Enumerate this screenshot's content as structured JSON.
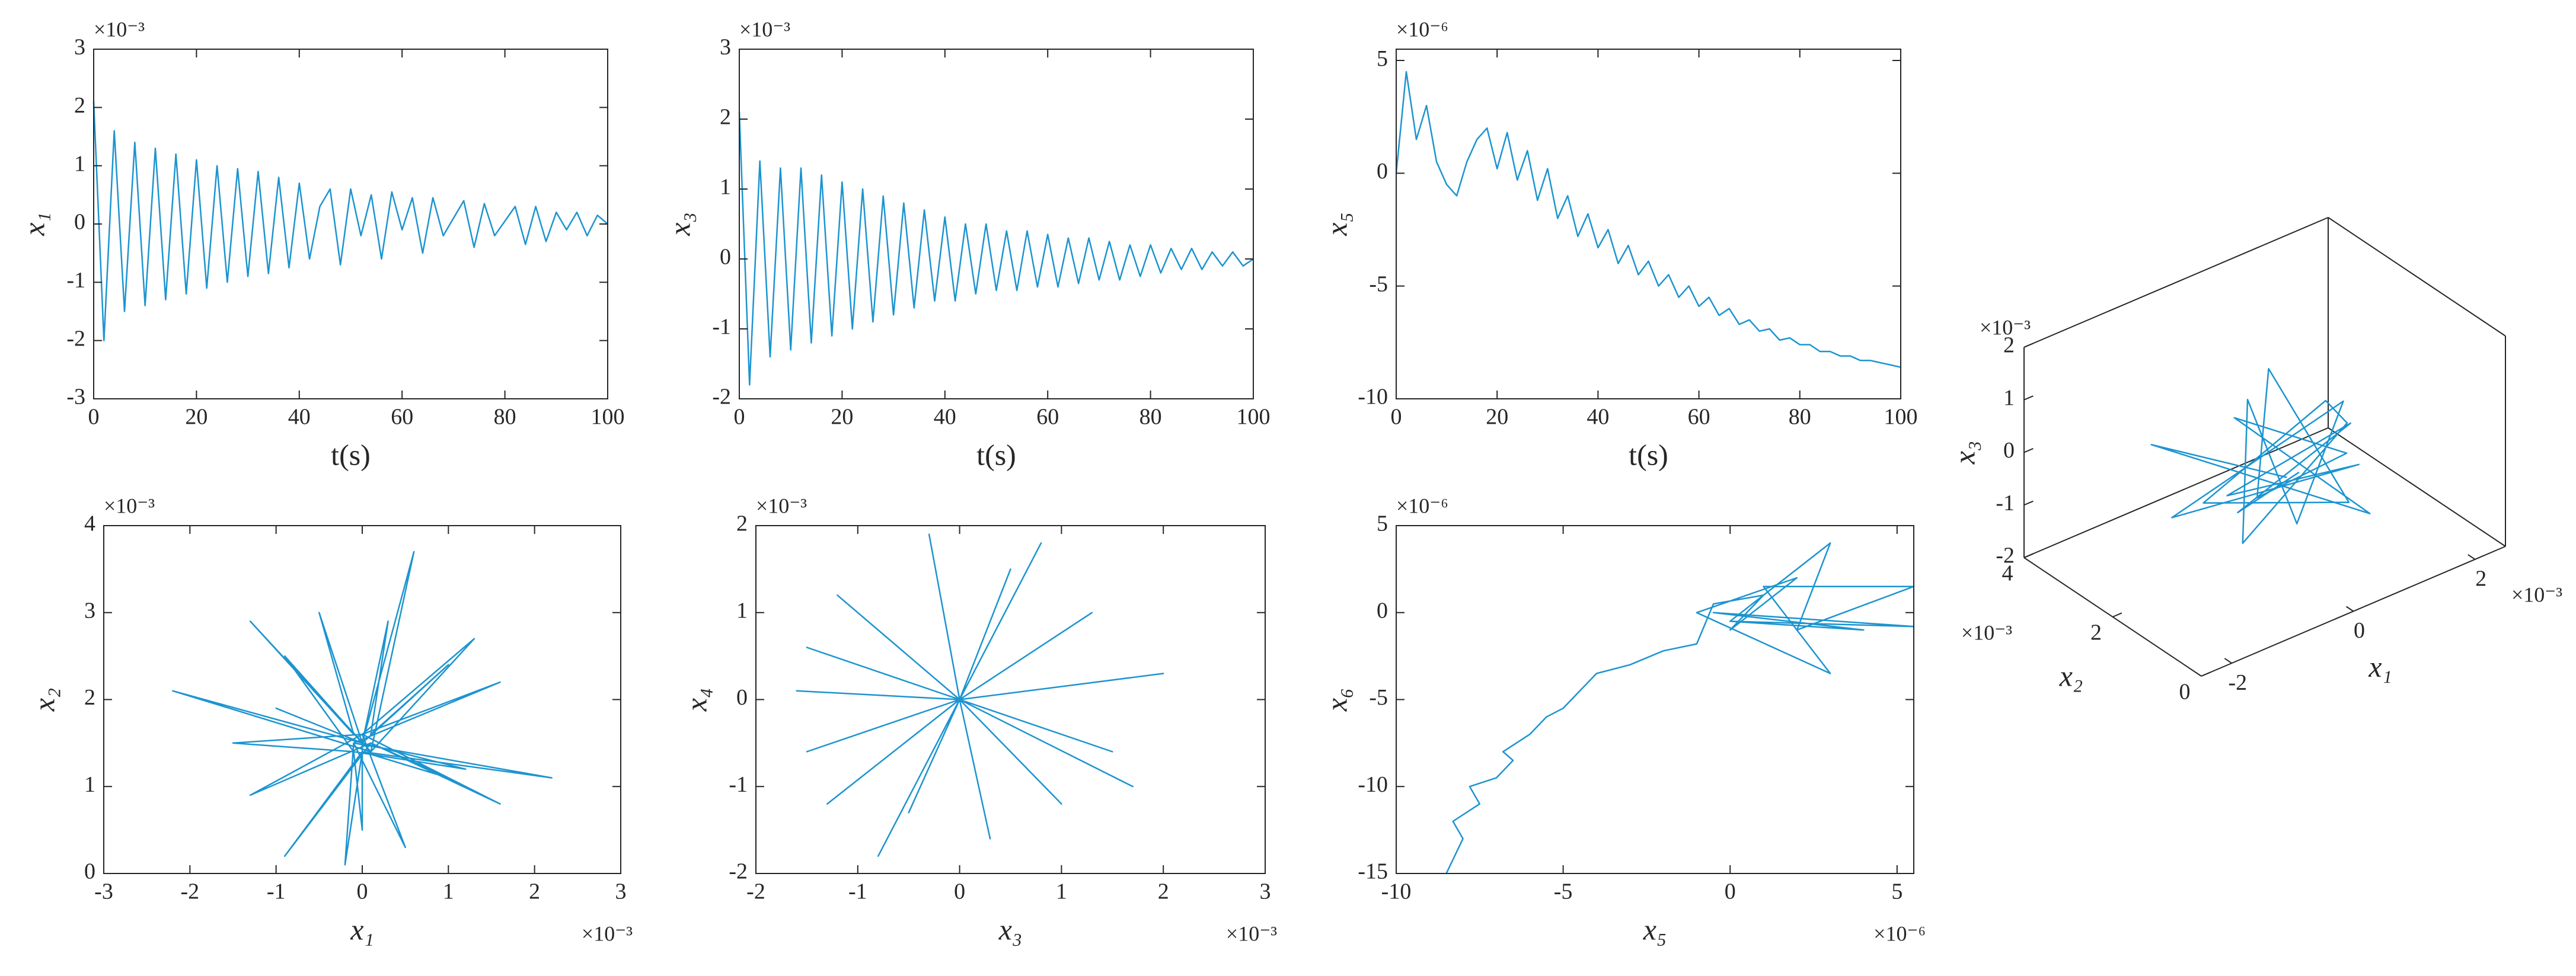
{
  "chart_data": [
    {
      "type": "line",
      "xlabel": "t(s)",
      "ylabel": "x₁",
      "yexponent": "×10⁻³",
      "color": "#1c94d0",
      "xlim": [
        0,
        100
      ],
      "ylim": [
        -3,
        3
      ],
      "xticks": [
        0,
        20,
        40,
        60,
        80,
        100
      ],
      "yticks": [
        -3,
        -2,
        -1,
        0,
        1,
        2,
        3
      ],
      "x": [
        0,
        2,
        4,
        6,
        8,
        10,
        12,
        14,
        16,
        18,
        20,
        22,
        24,
        26,
        28,
        30,
        32,
        34,
        36,
        38,
        40,
        42,
        44,
        46,
        48,
        50,
        52,
        54,
        56,
        58,
        60,
        62,
        64,
        66,
        68,
        70,
        72,
        74,
        76,
        78,
        80,
        82,
        84,
        86,
        88,
        90,
        92,
        94,
        96,
        98,
        100
      ],
      "values": [
        2.1,
        -2.0,
        1.6,
        -1.5,
        1.4,
        -1.4,
        1.3,
        -1.3,
        1.2,
        -1.2,
        1.1,
        -1.1,
        1.0,
        -1.0,
        0.95,
        -0.9,
        0.9,
        -0.85,
        0.8,
        -0.75,
        0.7,
        -0.6,
        0.3,
        0.6,
        -0.7,
        0.6,
        -0.2,
        0.5,
        -0.6,
        0.55,
        -0.1,
        0.45,
        -0.5,
        0.45,
        -0.2,
        0.1,
        0.4,
        -0.4,
        0.35,
        -0.2,
        0.05,
        0.3,
        -0.35,
        0.3,
        -0.3,
        0.2,
        -0.1,
        0.2,
        -0.2,
        0.15,
        0
      ]
    },
    {
      "type": "line",
      "xlabel": "t(s)",
      "ylabel": "x₃",
      "yexponent": "×10⁻³",
      "color": "#1c94d0",
      "xlim": [
        0,
        100
      ],
      "ylim": [
        -2,
        3
      ],
      "xticks": [
        0,
        20,
        40,
        60,
        80,
        100
      ],
      "yticks": [
        -2,
        -1,
        0,
        1,
        2,
        3
      ],
      "x": [
        0,
        2,
        4,
        6,
        8,
        10,
        12,
        14,
        16,
        18,
        20,
        22,
        24,
        26,
        28,
        30,
        32,
        34,
        36,
        38,
        40,
        42,
        44,
        46,
        48,
        50,
        52,
        54,
        56,
        58,
        60,
        62,
        64,
        66,
        68,
        70,
        72,
        74,
        76,
        78,
        80,
        82,
        84,
        86,
        88,
        90,
        92,
        94,
        96,
        98,
        100
      ],
      "values": [
        2.1,
        -1.8,
        1.4,
        -1.4,
        1.3,
        -1.3,
        1.3,
        -1.2,
        1.2,
        -1.1,
        1.1,
        -1.0,
        1.0,
        -0.9,
        0.9,
        -0.8,
        0.8,
        -0.7,
        0.7,
        -0.6,
        0.6,
        -0.6,
        0.5,
        -0.5,
        0.5,
        -0.45,
        0.4,
        -0.45,
        0.4,
        -0.4,
        0.35,
        -0.4,
        0.3,
        -0.35,
        0.3,
        -0.3,
        0.25,
        -0.3,
        0.2,
        -0.25,
        0.2,
        -0.2,
        0.15,
        -0.15,
        0.15,
        -0.15,
        0.1,
        -0.1,
        0.1,
        -0.1,
        0
      ]
    },
    {
      "type": "line",
      "xlabel": "t(s)",
      "ylabel": "x₅",
      "yexponent": "×10⁻⁶",
      "color": "#1c94d0",
      "xlim": [
        0,
        100
      ],
      "ylim": [
        -10,
        5.5
      ],
      "xticks": [
        0,
        20,
        40,
        60,
        80,
        100
      ],
      "yticks": [
        -10,
        -5,
        0,
        5
      ],
      "x": [
        0,
        2,
        4,
        6,
        8,
        10,
        12,
        14,
        16,
        18,
        20,
        22,
        24,
        26,
        28,
        30,
        32,
        34,
        36,
        38,
        40,
        42,
        44,
        46,
        48,
        50,
        52,
        54,
        56,
        58,
        60,
        62,
        64,
        66,
        68,
        70,
        72,
        74,
        76,
        78,
        80,
        82,
        84,
        86,
        88,
        90,
        92,
        94,
        96,
        98,
        100
      ],
      "values": [
        0,
        4.5,
        1.5,
        3,
        0.5,
        -0.5,
        -1.0,
        0.5,
        1.5,
        2.0,
        0.2,
        1.8,
        -0.3,
        1.0,
        -1.2,
        0.2,
        -2.0,
        -1.0,
        -2.8,
        -1.8,
        -3.3,
        -2.5,
        -4.0,
        -3.2,
        -4.5,
        -3.9,
        -5.0,
        -4.5,
        -5.5,
        -5.0,
        -5.9,
        -5.5,
        -6.3,
        -6.0,
        -6.7,
        -6.5,
        -7.0,
        -6.9,
        -7.4,
        -7.3,
        -7.6,
        -7.6,
        -7.9,
        -7.9,
        -8.1,
        -8.1,
        -8.3,
        -8.3,
        -8.4,
        -8.5,
        -8.6
      ]
    },
    {
      "type": "line",
      "xlabel": "x₁",
      "ylabel": "x₂",
      "xexponent": "×10⁻³",
      "yexponent": "×10⁻³",
      "color": "#1c94d0",
      "xlim": [
        -3,
        3
      ],
      "ylim": [
        0,
        4
      ],
      "xticks": [
        -3,
        -2,
        -1,
        0,
        1,
        2,
        3
      ],
      "yticks": [
        0,
        1,
        2,
        3,
        4
      ],
      "x": [
        0,
        -2.2,
        0.1,
        -1.3,
        -0.1,
        -0.5,
        0,
        0.6,
        0.1,
        1.3,
        0,
        1.6,
        -0.1,
        2.2,
        0,
        1.0,
        0.1,
        1.6,
        0,
        0.5,
        -0.1,
        -0.2,
        0,
        -0.9,
        0.1,
        -1.3,
        0,
        -1.5,
        -0.1,
        -0.9,
        0,
        0.3,
        0.1,
        1.0,
        0,
        1.2,
        -0.1,
        0,
        0,
        -1.0,
        0
      ],
      "values": [
        1.5,
        2.1,
        1.4,
        2.9,
        1.6,
        3.0,
        1.5,
        3.7,
        1.4,
        2.7,
        1.6,
        2.2,
        1.5,
        1.1,
        1.4,
        1.1,
        1.5,
        0.8,
        1.6,
        0.3,
        1.5,
        0.1,
        1.4,
        0.2,
        1.5,
        0.9,
        1.6,
        1.5,
        1.4,
        2.5,
        1.5,
        2.9,
        1.6,
        2.4,
        1.5,
        1.2,
        1.4,
        0.5,
        1.5,
        1.9,
        1.5
      ]
    },
    {
      "type": "line",
      "xlabel": "x₃",
      "ylabel": "x₄",
      "xexponent": "×10⁻³",
      "yexponent": "×10⁻³",
      "color": "#1c94d0",
      "xlim": [
        -2,
        3
      ],
      "ylim": [
        -2,
        2
      ],
      "xticks": [
        -2,
        -1,
        0,
        1,
        2,
        3
      ],
      "yticks": [
        -2,
        -1,
        0,
        1,
        2
      ],
      "x": [
        0,
        -1.5,
        0,
        -1.2,
        0,
        -0.3,
        0,
        0.5,
        0,
        1.3,
        0,
        2.0,
        0,
        1.7,
        0,
        1.0,
        0,
        0.3,
        0,
        -0.5,
        0,
        -1.3,
        0,
        -1.5,
        0,
        -1.6,
        0,
        0.8,
        0,
        -0.8,
        0,
        1.5,
        0
      ],
      "values": [
        0,
        0.6,
        0,
        1.2,
        0,
        1.9,
        0,
        1.5,
        0,
        1.0,
        0,
        0.3,
        0,
        -1.0,
        0,
        -1.2,
        0,
        -1.6,
        0,
        -1.3,
        0,
        -1.2,
        0,
        -0.6,
        0,
        0.1,
        0,
        1.8,
        0,
        -1.8,
        0,
        -0.6,
        0
      ]
    },
    {
      "type": "line",
      "xlabel": "x₅",
      "ylabel": "x₆",
      "xexponent": "×10⁻⁶",
      "yexponent": "×10⁻⁶",
      "color": "#1c94d0",
      "xlim": [
        -10,
        5.5
      ],
      "ylim": [
        -15,
        5
      ],
      "xticks": [
        -10,
        -5,
        0,
        5
      ],
      "yticks": [
        -15,
        -10,
        -5,
        0,
        5
      ],
      "x": [
        -8.5,
        -8.0,
        -8.3,
        -7.5,
        -7.8,
        -7.0,
        -6.5,
        -6.8,
        -6.0,
        -5.5,
        -5.0,
        -4.5,
        -4.0,
        -3.0,
        -2.0,
        -1.0,
        -0.5,
        1.0,
        0,
        2.0,
        -1,
        3.0,
        1,
        5.5,
        2,
        3.0,
        0,
        4.0,
        -0.5,
        5.5,
        0
      ],
      "values": [
        -15,
        -13,
        -12,
        -11,
        -10,
        -9.5,
        -8.5,
        -8,
        -7,
        -6,
        -5.5,
        -4.5,
        -3.5,
        -3,
        -2.2,
        -1.8,
        0.5,
        1,
        -1,
        2,
        0,
        -3.5,
        1.5,
        1.5,
        -1,
        4,
        -0.5,
        -1,
        0,
        -0.8,
        -0.5
      ]
    },
    {
      "type": "line3d",
      "xlabel": "x₁",
      "ylabel": "x₂",
      "zlabel": "x₃",
      "xexponent": "×10⁻³",
      "yexponent": "×10⁻³",
      "zexponent": "×10⁻³",
      "color": "#1c94d0",
      "xlim": [
        -2.5,
        2.5
      ],
      "ylim": [
        0,
        4
      ],
      "zlim": [
        -2,
        2
      ],
      "xticks": [
        -2,
        0,
        2
      ],
      "yticks": [
        0,
        2,
        4
      ],
      "zticks": [
        -2,
        -1,
        0,
        1,
        2
      ],
      "x": [
        0,
        -1.5,
        1.0,
        -0.5,
        1.2,
        -1.0,
        0.5,
        0.8,
        -1.3,
        0.2,
        1.5,
        -0.8,
        0.3,
        -0.2,
        1.0,
        -1.6,
        0.6,
        -0.4,
        0.9,
        -1.1,
        0.2
      ],
      "y": [
        1.5,
        2.5,
        1.0,
        2.0,
        1.8,
        0.8,
        2.6,
        1.2,
        1.6,
        0.9,
        2.2,
        1.4,
        2.8,
        1.0,
        1.6,
        1.9,
        0.7,
        2.3,
        1.3,
        1.1,
        1.5
      ],
      "z": [
        -0.3,
        0.5,
        -1.2,
        0.8,
        -0.6,
        0.2,
        0.9,
        -1.0,
        -0.2,
        1.4,
        -0.4,
        -1.1,
        0.3,
        -0.8,
        0.6,
        -0.5,
        0.1,
        -0.9,
        0.4,
        -0.2,
        -0.3
      ]
    }
  ]
}
